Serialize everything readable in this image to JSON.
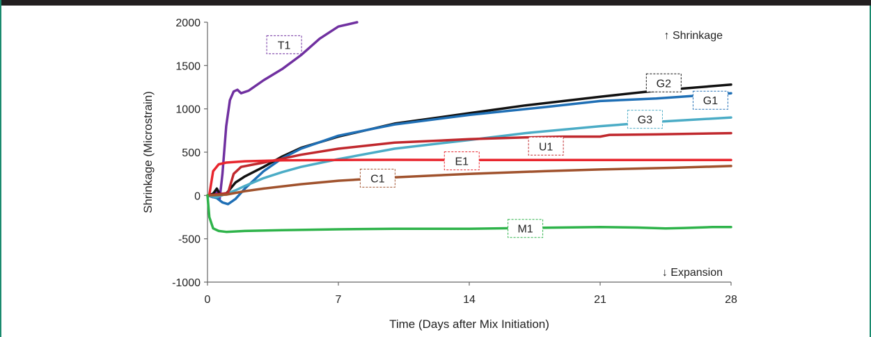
{
  "chart_data": {
    "type": "line",
    "xlabel": "Time (Days after Mix Initiation)",
    "ylabel": "Shrinkage (Microstrain)",
    "xlim": [
      0,
      28
    ],
    "ylim": [
      -1000,
      2000
    ],
    "xticks": [
      0,
      7,
      14,
      21,
      28
    ],
    "yticks": [
      -1000,
      -500,
      0,
      500,
      1000,
      1500,
      2000
    ],
    "grid": false,
    "annotations": {
      "top": "↑ Shrinkage",
      "bottom": "↓ Expansion"
    },
    "series": [
      {
        "name": "T1",
        "color": "#7030a0",
        "label_pos": [
          4.1,
          1740
        ],
        "points": [
          [
            0,
            0
          ],
          [
            0.3,
            -20
          ],
          [
            0.5,
            50
          ],
          [
            0.65,
            -40
          ],
          [
            0.8,
            250
          ],
          [
            1.0,
            800
          ],
          [
            1.2,
            1100
          ],
          [
            1.4,
            1200
          ],
          [
            1.6,
            1220
          ],
          [
            1.8,
            1180
          ],
          [
            2.2,
            1210
          ],
          [
            3,
            1330
          ],
          [
            4,
            1460
          ],
          [
            5,
            1620
          ],
          [
            6,
            1810
          ],
          [
            7,
            1950
          ],
          [
            8,
            2000
          ]
        ]
      },
      {
        "name": "G2",
        "color": "#111111",
        "label_pos": [
          24.4,
          1300
        ],
        "points": [
          [
            0,
            0
          ],
          [
            0.3,
            20
          ],
          [
            0.5,
            80
          ],
          [
            0.7,
            0
          ],
          [
            1,
            20
          ],
          [
            1.5,
            150
          ],
          [
            2,
            220
          ],
          [
            3,
            330
          ],
          [
            4,
            450
          ],
          [
            5,
            550
          ],
          [
            7,
            680
          ],
          [
            10,
            830
          ],
          [
            14,
            950
          ],
          [
            17,
            1040
          ],
          [
            21,
            1140
          ],
          [
            24,
            1210
          ],
          [
            28,
            1280
          ]
        ]
      },
      {
        "name": "G1",
        "color": "#1f6fb5",
        "label_pos": [
          26.9,
          1100
        ],
        "points": [
          [
            0,
            0
          ],
          [
            0.5,
            -30
          ],
          [
            0.8,
            -80
          ],
          [
            1.1,
            -100
          ],
          [
            1.5,
            -40
          ],
          [
            2,
            80
          ],
          [
            3,
            280
          ],
          [
            4,
            430
          ],
          [
            5,
            540
          ],
          [
            7,
            690
          ],
          [
            10,
            820
          ],
          [
            14,
            930
          ],
          [
            18,
            1020
          ],
          [
            21,
            1090
          ],
          [
            24,
            1120
          ],
          [
            26,
            1150
          ],
          [
            28,
            1180
          ]
        ]
      },
      {
        "name": "G3",
        "color": "#4bacc6",
        "label_pos": [
          23.4,
          880
        ],
        "points": [
          [
            0,
            0
          ],
          [
            0.5,
            -20
          ],
          [
            1,
            20
          ],
          [
            1.5,
            60
          ],
          [
            2,
            110
          ],
          [
            3,
            200
          ],
          [
            4,
            270
          ],
          [
            5,
            330
          ],
          [
            7,
            420
          ],
          [
            10,
            540
          ],
          [
            14,
            640
          ],
          [
            17,
            720
          ],
          [
            21,
            800
          ],
          [
            24,
            850
          ],
          [
            28,
            900
          ]
        ]
      },
      {
        "name": "U1",
        "color": "#c0282d",
        "label_pos": [
          18.1,
          570
        ],
        "points": [
          [
            0,
            0
          ],
          [
            0.8,
            20
          ],
          [
            1.1,
            30
          ],
          [
            1.4,
            250
          ],
          [
            1.8,
            330
          ],
          [
            2.5,
            360
          ],
          [
            3,
            380
          ],
          [
            5,
            470
          ],
          [
            7,
            540
          ],
          [
            10,
            610
          ],
          [
            14,
            650
          ],
          [
            17,
            670
          ],
          [
            19,
            680
          ],
          [
            21,
            680
          ],
          [
            21.5,
            700
          ],
          [
            24,
            705
          ],
          [
            28,
            720
          ]
        ]
      },
      {
        "name": "E1",
        "color": "#e8262e",
        "label_pos": [
          13.6,
          400
        ],
        "points": [
          [
            0,
            0
          ],
          [
            0.1,
            10
          ],
          [
            0.3,
            280
          ],
          [
            0.6,
            360
          ],
          [
            1,
            380
          ],
          [
            2,
            395
          ],
          [
            4,
            405
          ],
          [
            7,
            410
          ],
          [
            10,
            412
          ],
          [
            14,
            410
          ],
          [
            21,
            410
          ],
          [
            28,
            410
          ]
        ]
      },
      {
        "name": "C1",
        "color": "#a0522d",
        "label_pos": [
          9.1,
          200
        ],
        "points": [
          [
            0,
            0
          ],
          [
            1,
            10
          ],
          [
            2,
            50
          ],
          [
            3,
            80
          ],
          [
            5,
            130
          ],
          [
            7,
            170
          ],
          [
            10,
            210
          ],
          [
            14,
            250
          ],
          [
            18,
            280
          ],
          [
            21,
            300
          ],
          [
            25,
            320
          ],
          [
            28,
            340
          ]
        ]
      },
      {
        "name": "M1",
        "color": "#2eb34a",
        "label_pos": [
          17.0,
          -380
        ],
        "points": [
          [
            0,
            0
          ],
          [
            0.1,
            -250
          ],
          [
            0.3,
            -380
          ],
          [
            0.6,
            -410
          ],
          [
            1,
            -420
          ],
          [
            2,
            -410
          ],
          [
            4,
            -400
          ],
          [
            7,
            -390
          ],
          [
            10,
            -385
          ],
          [
            14,
            -385
          ],
          [
            17,
            -375
          ],
          [
            21,
            -365
          ],
          [
            23,
            -370
          ],
          [
            24.5,
            -380
          ],
          [
            25.5,
            -375
          ],
          [
            27,
            -365
          ],
          [
            28,
            -365
          ]
        ]
      }
    ]
  }
}
